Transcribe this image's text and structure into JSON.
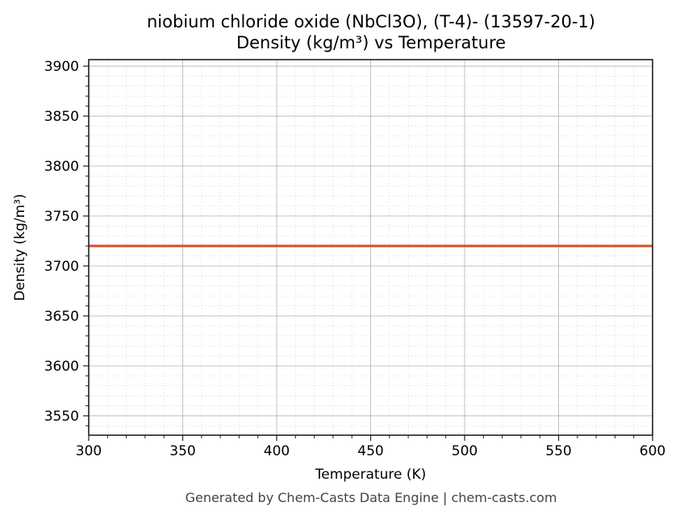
{
  "chart_data": {
    "type": "line",
    "title": "niobium chloride oxide (NbCl3O), (T-4)- (13597-20-1)",
    "subtitle": "Density (kg/m³) vs Temperature",
    "xlabel": "Temperature (K)",
    "ylabel": "Density (kg/m³)",
    "xlim": [
      300,
      600
    ],
    "ylim": [
      3530.6,
      3906.5
    ],
    "x_ticks": [
      300,
      350,
      400,
      450,
      500,
      550,
      600
    ],
    "y_ticks": [
      3550,
      3600,
      3650,
      3700,
      3750,
      3800,
      3850,
      3900
    ],
    "grid": true,
    "legend": null,
    "series": [
      {
        "name": "Density",
        "color": "#d4572a",
        "x": [
          300,
          600
        ],
        "values": [
          3720,
          3720
        ]
      }
    ]
  },
  "footer": "Generated by Chem-Casts Data Engine | chem-casts.com",
  "colors": {
    "line": "#d4572a",
    "major_grid": "#b0b0b0",
    "minor_grid": "#e0e0e0",
    "axis": "#222222",
    "footer_text": "#444444"
  }
}
